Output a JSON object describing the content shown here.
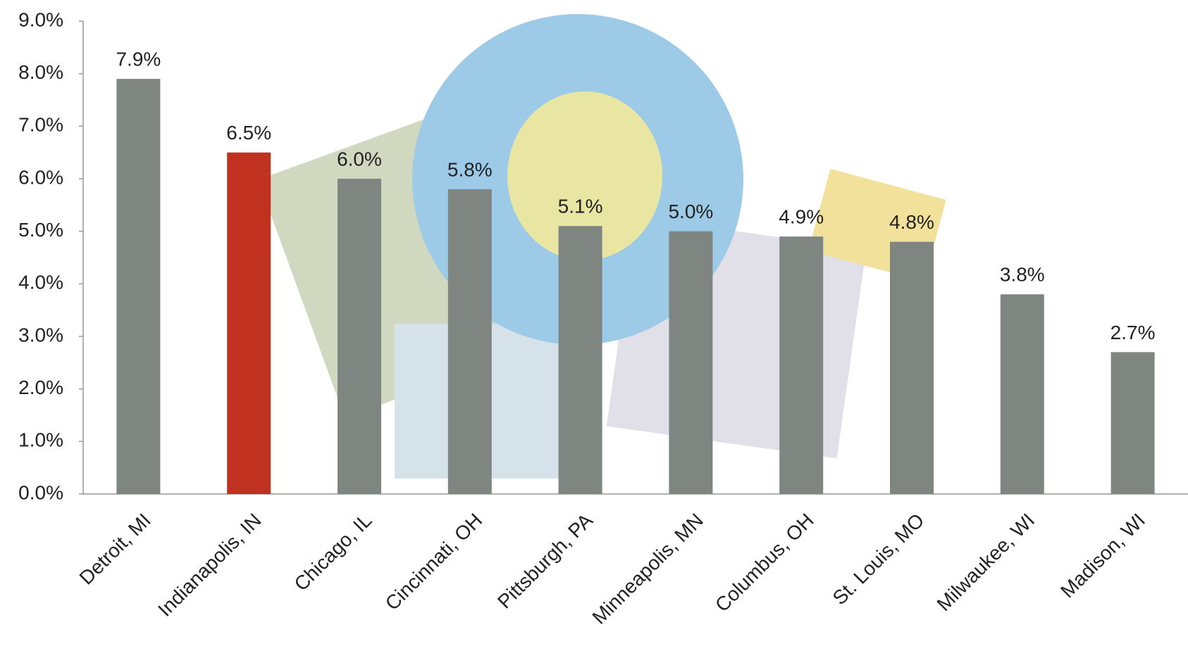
{
  "chart_data": {
    "type": "bar",
    "categories": [
      "Detroit, MI",
      "Indianapolis, IN",
      "Chicago, IL",
      "Cincinnati, OH",
      "Pittsburgh, PA",
      "Minneapolis, MN",
      "Columbus, OH",
      "St. Louis, MO",
      "Milwaukee, WI",
      "Madison, WI"
    ],
    "values": [
      7.9,
      6.5,
      6.0,
      5.8,
      5.1,
      5.0,
      4.9,
      4.8,
      3.8,
      2.7
    ],
    "value_labels": [
      "7.9%",
      "6.5%",
      "6.0%",
      "5.8%",
      "5.1%",
      "5.0%",
      "4.9%",
      "4.8%",
      "3.8%",
      "2.7%"
    ],
    "colors": [
      "#7f8581",
      "#c0321f",
      "#7f8581",
      "#7f8581",
      "#7f8581",
      "#7f8581",
      "#7f8581",
      "#7f8581",
      "#7f8581",
      "#7f8581"
    ],
    "ylim": [
      0,
      9
    ],
    "yticks": [
      {
        "value": 0,
        "label": "0.0%"
      },
      {
        "value": 1,
        "label": "1.0%"
      },
      {
        "value": 2,
        "label": "2.0%"
      },
      {
        "value": 3,
        "label": "3.0%"
      },
      {
        "value": 4,
        "label": "4.0%"
      },
      {
        "value": 5,
        "label": "5.0%"
      },
      {
        "value": 6,
        "label": "6.0%"
      },
      {
        "value": 7,
        "label": "7.0%"
      },
      {
        "value": 8,
        "label": "8.0%"
      },
      {
        "value": 9,
        "label": "9.0%"
      }
    ],
    "grid": false
  }
}
